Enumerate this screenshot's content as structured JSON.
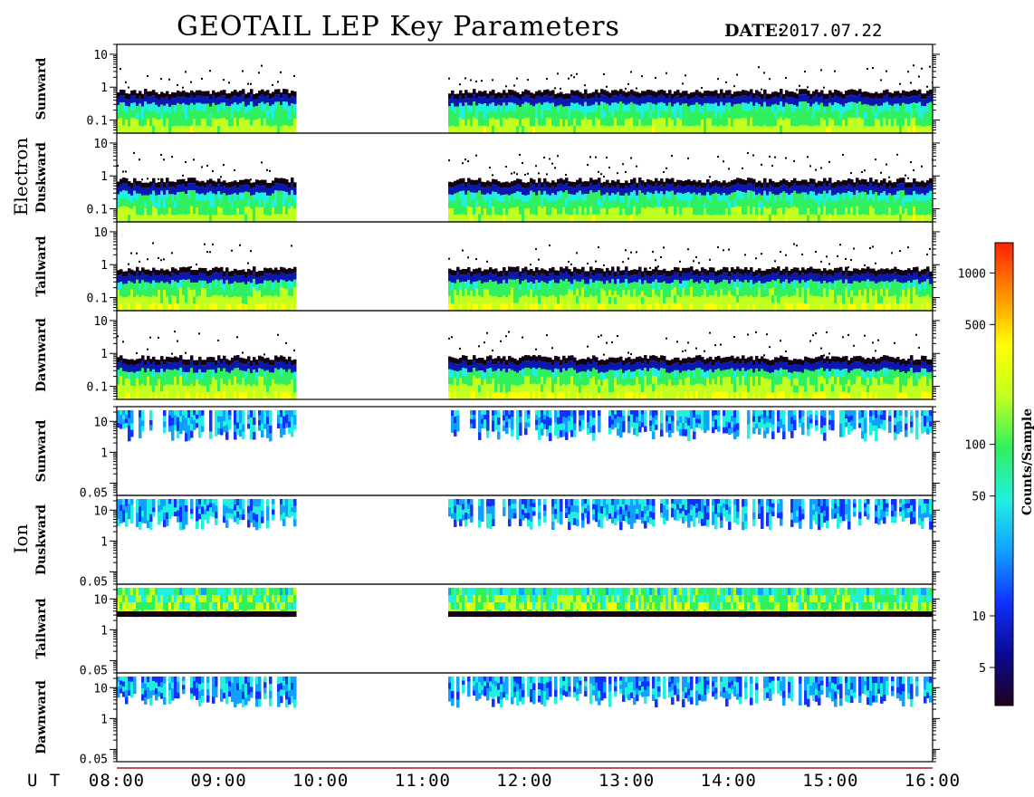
{
  "header": {
    "title": "GEOTAIL LEP Key Parameters",
    "date_label": "DATE:",
    "date_value": "2017.07.22"
  },
  "chart_data": {
    "type": "heatmap",
    "time_axis": {
      "unit_label": "U T",
      "ticks": [
        "08:00",
        "09:00",
        "10:00",
        "11:00",
        "12:00",
        "13:00",
        "14:00",
        "15:00",
        "16:00"
      ],
      "range_hours": [
        8.0,
        16.0
      ],
      "data_gap_hours": [
        9.75,
        11.25
      ]
    },
    "groups": [
      {
        "name": "Electron",
        "y_ticks": [
          "10",
          "1",
          "0.1"
        ],
        "y_tick_values": [
          10,
          1,
          0.1
        ],
        "y_range": [
          0.04,
          20
        ],
        "scale": "log",
        "panels": [
          {
            "name": "Sunward"
          },
          {
            "name": "Duskward"
          },
          {
            "name": "Tailward"
          },
          {
            "name": "Dawnward"
          }
        ]
      },
      {
        "name": "Ion",
        "y_ticks": [
          "10",
          "1",
          "0.05"
        ],
        "y_tick_values": [
          10,
          1,
          0.05
        ],
        "y_range": [
          0.04,
          30
        ],
        "scale": "log",
        "panels": [
          {
            "name": "Sunward"
          },
          {
            "name": "Duskward"
          },
          {
            "name": "Tailward"
          },
          {
            "name": "Dawnward"
          }
        ]
      }
    ],
    "colorbar": {
      "label": "Counts/Sample",
      "scale": "log",
      "range": [
        3,
        1500
      ],
      "ticks": [
        {
          "label": "1000",
          "value": 1000
        },
        {
          "label": "500",
          "value": 500
        },
        {
          "label": "100",
          "value": 100
        },
        {
          "label": "50",
          "value": 50
        },
        {
          "label": "10",
          "value": 10
        },
        {
          "label": "5",
          "value": 5
        }
      ],
      "colors": [
        "#200020",
        "#0a0a90",
        "#1030ff",
        "#10a0ff",
        "#20f0e0",
        "#30f060",
        "#c0ff20",
        "#ffff00",
        "#ff9000",
        "#ff2000"
      ]
    }
  }
}
